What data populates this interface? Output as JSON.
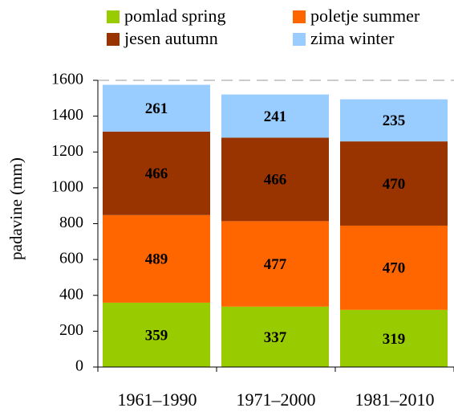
{
  "chart_data": {
    "type": "stacked-bar",
    "categories": [
      "1961–1990",
      "1971–2000",
      "1981–2010"
    ],
    "series": [
      {
        "name": "pomlad spring",
        "color": "#99cc00",
        "values": [
          359,
          337,
          319
        ]
      },
      {
        "name": "poletje summer",
        "color": "#ff6600",
        "values": [
          489,
          477,
          470
        ]
      },
      {
        "name": "jesen autumn",
        "color": "#993300",
        "values": [
          466,
          466,
          470
        ]
      },
      {
        "name": "zima winter",
        "color": "#99ccff",
        "values": [
          261,
          241,
          235
        ]
      }
    ],
    "y_label": "padavine (mm)",
    "ylim": [
      0,
      1600
    ],
    "yticks": [
      0,
      200,
      400,
      600,
      800,
      1000,
      1200,
      1400,
      1600
    ]
  }
}
